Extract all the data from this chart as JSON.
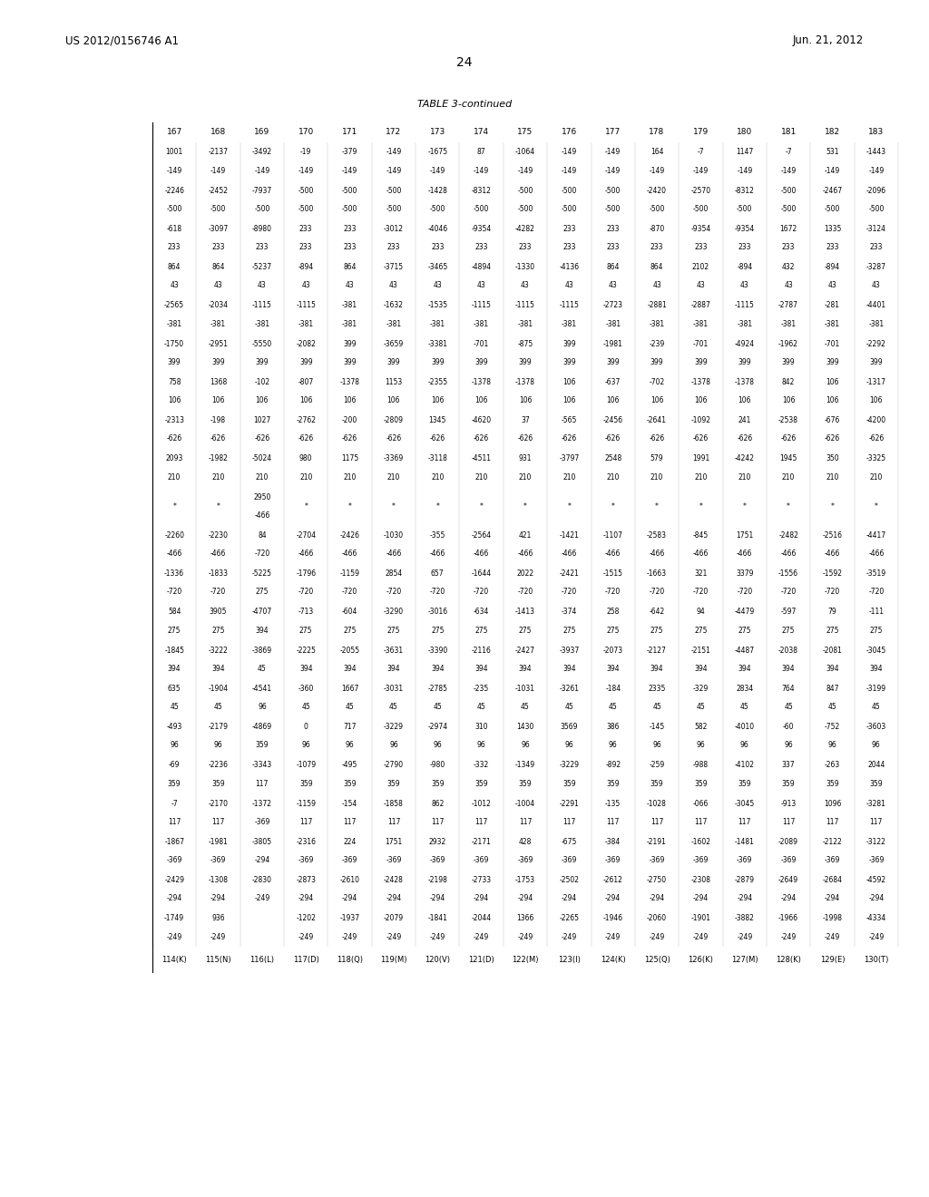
{
  "header_left": "US 2012/0156746 A1",
  "header_right": "Jun. 21, 2012",
  "page_number": "24",
  "table_title": "TABLE 3-continued",
  "background_color": "#ffffff",
  "text_color": "#000000",
  "col_headers": [
    "167",
    "168",
    "169",
    "170",
    "171",
    "172",
    "173",
    "174",
    "175",
    "176",
    "177",
    "178",
    "179",
    "180",
    "181",
    "182",
    "183"
  ],
  "row_labels": [
    "114(K)",
    "115(N)",
    "116(L)",
    "117(D)",
    "118(Q)",
    "119(M)",
    "120(V)",
    "121(D)",
    "122(M)",
    "123(I)",
    "124(K)",
    "125(Q)",
    "126(K)",
    "127(M)",
    "128(K)",
    "129(E)",
    "130(T)"
  ],
  "table_rows": [
    [
      "114(K)",
      "1001",
      "-149",
      "-2246",
      "-500",
      "-618",
      "233",
      "864",
      "43",
      "-2565",
      "-381",
      "-1750",
      "399",
      "758",
      "106",
      "-2313",
      "-626",
      "2093",
      "210",
      "*",
      "-2260",
      "-466",
      "-1336",
      "-720",
      "584",
      "275",
      "-1845",
      "394",
      "635",
      "45",
      "-493",
      "96",
      "-69",
      "359",
      "-7",
      "117",
      "-1867",
      "-369",
      "-2429",
      "-294",
      "-1749",
      "-249"
    ],
    [
      "115(N)",
      "-2137",
      "-149",
      "-2452",
      "-500",
      "-3097",
      "233",
      "864",
      "43",
      "-2034",
      "-381",
      "-2951",
      "399",
      "1368",
      "106",
      "-198",
      "-626",
      "-1982",
      "210",
      "*",
      "-2230",
      "-466",
      "-1833",
      "-720",
      "3905",
      "275",
      "-3222",
      "394",
      "-1904",
      "45",
      "-2179",
      "96",
      "-2236",
      "359",
      "-2170",
      "117",
      "-1981",
      "-369",
      "-1308",
      "-294",
      "936",
      "-249"
    ],
    [
      "116(L)",
      "-3492",
      "-149",
      "-7937",
      "-500",
      "-8980",
      "233",
      "-5237",
      "43",
      "-1115",
      "-381",
      "-5550",
      "399",
      "-102",
      "106",
      "1027",
      "-626",
      "-5024",
      "210",
      "2950",
      "-466",
      "84",
      "-720",
      "-5225",
      "275",
      "-4707",
      "394",
      "-3869",
      "45",
      "-4541",
      "96",
      "-4869",
      "359",
      "-3343",
      "117",
      "-1372",
      "-369",
      "-3805",
      "-294",
      "-2830",
      "-249"
    ],
    [
      "117(D)",
      "-19",
      "-149",
      "-500",
      "-500",
      "233",
      "233",
      "-894",
      "43",
      "-1115",
      "-381",
      "-2082",
      "399",
      "-807",
      "106",
      "-2762",
      "-626",
      "980",
      "210",
      "*",
      "-2704",
      "-466",
      "-1796",
      "-720",
      "-713",
      "275",
      "-2225",
      "394",
      "-360",
      "45",
      "0",
      "96",
      "-1079",
      "359",
      "-1159",
      "117",
      "-2316",
      "-369",
      "-2873",
      "-294",
      "-1202",
      "-249"
    ],
    [
      "118(Q)",
      "-379",
      "-149",
      "-500",
      "-500",
      "233",
      "233",
      "864",
      "43",
      "-381",
      "-381",
      "399",
      "399",
      "-1378",
      "106",
      "-200",
      "-626",
      "1175",
      "210",
      "*",
      "-2426",
      "-466",
      "-1159",
      "-720",
      "-604",
      "275",
      "-2055",
      "394",
      "1667",
      "45",
      "717",
      "96",
      "-495",
      "359",
      "-154",
      "117",
      "224",
      "-369",
      "-2610",
      "-294",
      "-1937",
      "-249"
    ],
    [
      "119(M)",
      "-149",
      "-149",
      "-500",
      "-500",
      "-3012",
      "233",
      "-3715",
      "43",
      "-1632",
      "-381",
      "-3659",
      "399",
      "1153",
      "106",
      "-2809",
      "-626",
      "-3369",
      "210",
      "*",
      "-1030",
      "-466",
      "2854",
      "-720",
      "-3290",
      "275",
      "-3631",
      "394",
      "-3031",
      "45",
      "-3229",
      "96",
      "-2790",
      "359",
      "-1858",
      "117",
      "1751",
      "-369",
      "-2428",
      "-294",
      "-2079",
      "-249"
    ],
    [
      "120(V)",
      "-1675",
      "-149",
      "-1428",
      "-500",
      "-4046",
      "233",
      "-3465",
      "43",
      "-1535",
      "-381",
      "-3381",
      "399",
      "-2355",
      "106",
      "1345",
      "-626",
      "-3118",
      "210",
      "*",
      "-355",
      "-466",
      "657",
      "-720",
      "-3016",
      "275",
      "-3390",
      "394",
      "-2785",
      "45",
      "-2974",
      "96",
      "-980",
      "359",
      "862",
      "117",
      "2932",
      "-369",
      "-2198",
      "-294",
      "-1841",
      "-249"
    ],
    [
      "121(D)",
      "87",
      "-149",
      "-8312",
      "-500",
      "-9354",
      "233",
      "-4894",
      "43",
      "-1115",
      "-381",
      "-701",
      "399",
      "-1378",
      "106",
      "-4620",
      "-626",
      "-4511",
      "210",
      "*",
      "-2564",
      "-466",
      "-1644",
      "-720",
      "-634",
      "275",
      "-2116",
      "394",
      "-235",
      "45",
      "310",
      "96",
      "-332",
      "359",
      "-1012",
      "117",
      "-2171",
      "-369",
      "-2733",
      "-294",
      "-2044",
      "-249"
    ],
    [
      "122(M)",
      "-1064",
      "-149",
      "-500",
      "-500",
      "-4282",
      "233",
      "-1330",
      "43",
      "-1115",
      "-381",
      "-875",
      "399",
      "-1378",
      "106",
      "37",
      "-626",
      "931",
      "210",
      "*",
      "421",
      "-466",
      "2022",
      "-720",
      "-1413",
      "275",
      "-2427",
      "394",
      "-1031",
      "45",
      "1430",
      "96",
      "-1349",
      "359",
      "-1004",
      "117",
      "428",
      "-369",
      "-1753",
      "-294",
      "1366",
      "-249"
    ],
    [
      "123(I)",
      "-149",
      "-149",
      "-500",
      "-500",
      "233",
      "233",
      "-4136",
      "43",
      "-1115",
      "-381",
      "399",
      "399",
      "106",
      "106",
      "-565",
      "-626",
      "-3797",
      "210",
      "*",
      "-1421",
      "-466",
      "-2421",
      "-720",
      "-374",
      "275",
      "-3937",
      "394",
      "-3261",
      "45",
      "3569",
      "96",
      "-3229",
      "359",
      "-2291",
      "117",
      "-675",
      "-369",
      "-2502",
      "-294",
      "-2265",
      "-249"
    ],
    [
      "124(K)",
      "-149",
      "-149",
      "-500",
      "-500",
      "233",
      "233",
      "864",
      "43",
      "-2723",
      "-381",
      "-1981",
      "399",
      "-637",
      "106",
      "-2456",
      "-626",
      "2548",
      "210",
      "*",
      "-1107",
      "-466",
      "-1515",
      "-720",
      "258",
      "275",
      "-2073",
      "394",
      "-184",
      "45",
      "386",
      "96",
      "-892",
      "359",
      "-135",
      "117",
      "-384",
      "-369",
      "-2612",
      "-294",
      "-1946",
      "-249"
    ],
    [
      "125(Q)",
      "164",
      "-149",
      "-2420",
      "-500",
      "-870",
      "233",
      "864",
      "43",
      "-2881",
      "-381",
      "-239",
      "399",
      "-702",
      "106",
      "-2641",
      "-626",
      "579",
      "210",
      "*",
      "-2583",
      "-466",
      "-1663",
      "-720",
      "-642",
      "275",
      "-2127",
      "394",
      "2335",
      "45",
      "-145",
      "96",
      "-259",
      "359",
      "-1028",
      "117",
      "-2191",
      "-369",
      "-2750",
      "-294",
      "-2060",
      "-249"
    ],
    [
      "126(K)",
      "-7",
      "-149",
      "-2570",
      "-500",
      "-9354",
      "233",
      "2102",
      "43",
      "-2887",
      "-381",
      "-701",
      "399",
      "-1378",
      "106",
      "-1092",
      "-626",
      "1991",
      "210",
      "*",
      "-845",
      "-466",
      "321",
      "-720",
      "94",
      "275",
      "-2151",
      "394",
      "-329",
      "45",
      "582",
      "96",
      "-988",
      "359",
      "-066",
      "117",
      "-1602",
      "-369",
      "-2308",
      "-294",
      "-1901",
      "-249"
    ],
    [
      "127(M)",
      "1147",
      "-149",
      "-8312",
      "-500",
      "-9354",
      "233",
      "-894",
      "43",
      "-1115",
      "-381",
      "-4924",
      "399",
      "-1378",
      "106",
      "241",
      "-626",
      "-4242",
      "210",
      "*",
      "1751",
      "-466",
      "3379",
      "-720",
      "-4479",
      "275",
      "-4487",
      "394",
      "2834",
      "45",
      "-4010",
      "96",
      "-4102",
      "359",
      "-3045",
      "117",
      "-1481",
      "-369",
      "-2879",
      "-294",
      "-3882",
      "-249"
    ],
    [
      "128(K)",
      "-7",
      "-149",
      "-500",
      "-500",
      "1672",
      "233",
      "432",
      "43",
      "-2787",
      "-381",
      "-1962",
      "399",
      "842",
      "106",
      "-2538",
      "-626",
      "1945",
      "210",
      "*",
      "-2482",
      "-466",
      "-1556",
      "-720",
      "-597",
      "275",
      "-2038",
      "394",
      "764",
      "45",
      "-60",
      "96",
      "337",
      "359",
      "-913",
      "117",
      "-2089",
      "-369",
      "-2649",
      "-294",
      "-1966",
      "-249"
    ],
    [
      "129(E)",
      "531",
      "-149",
      "-2467",
      "-500",
      "1335",
      "233",
      "-894",
      "43",
      "-281",
      "-381",
      "-701",
      "399",
      "106",
      "106",
      "-676",
      "-626",
      "350",
      "210",
      "*",
      "-2516",
      "-466",
      "-1592",
      "-720",
      "79",
      "275",
      "-2081",
      "394",
      "847",
      "45",
      "-752",
      "96",
      "-263",
      "359",
      "1096",
      "117",
      "-2122",
      "-369",
      "-2684",
      "-294",
      "-1998",
      "-249"
    ],
    [
      "130(T)",
      "-1443",
      "-149",
      "-2096",
      "-500",
      "-3124",
      "233",
      "-3287",
      "43",
      "-4401",
      "-381",
      "-2292",
      "399",
      "-1317",
      "106",
      "-4200",
      "-626",
      "-3325",
      "210",
      "*",
      "-4417",
      "-466",
      "-3519",
      "-720",
      "-111",
      "275",
      "-3045",
      "394",
      "-3199",
      "45",
      "-3603",
      "96",
      "2044",
      "359",
      "-3281",
      "117",
      "-3122",
      "-369",
      "-4592",
      "-294",
      "-4334",
      "-249"
    ]
  ],
  "col_pair_labels": [
    "1001\n-149",
    "-2246\n-500",
    "-618\n233",
    "864\n43",
    "-2565\n-381",
    "-1750\n399",
    "758\n106",
    "-2313\n-626",
    "2093\n210",
    "",
    "-2260\n-466",
    "-1336\n-720",
    "584\n275",
    "-1845\n394",
    "635\n45",
    "-493\n96",
    "-69\n359",
    "-7\n117",
    "-1867\n-369",
    "-2429\n-294",
    "-1749\n-249"
  ]
}
